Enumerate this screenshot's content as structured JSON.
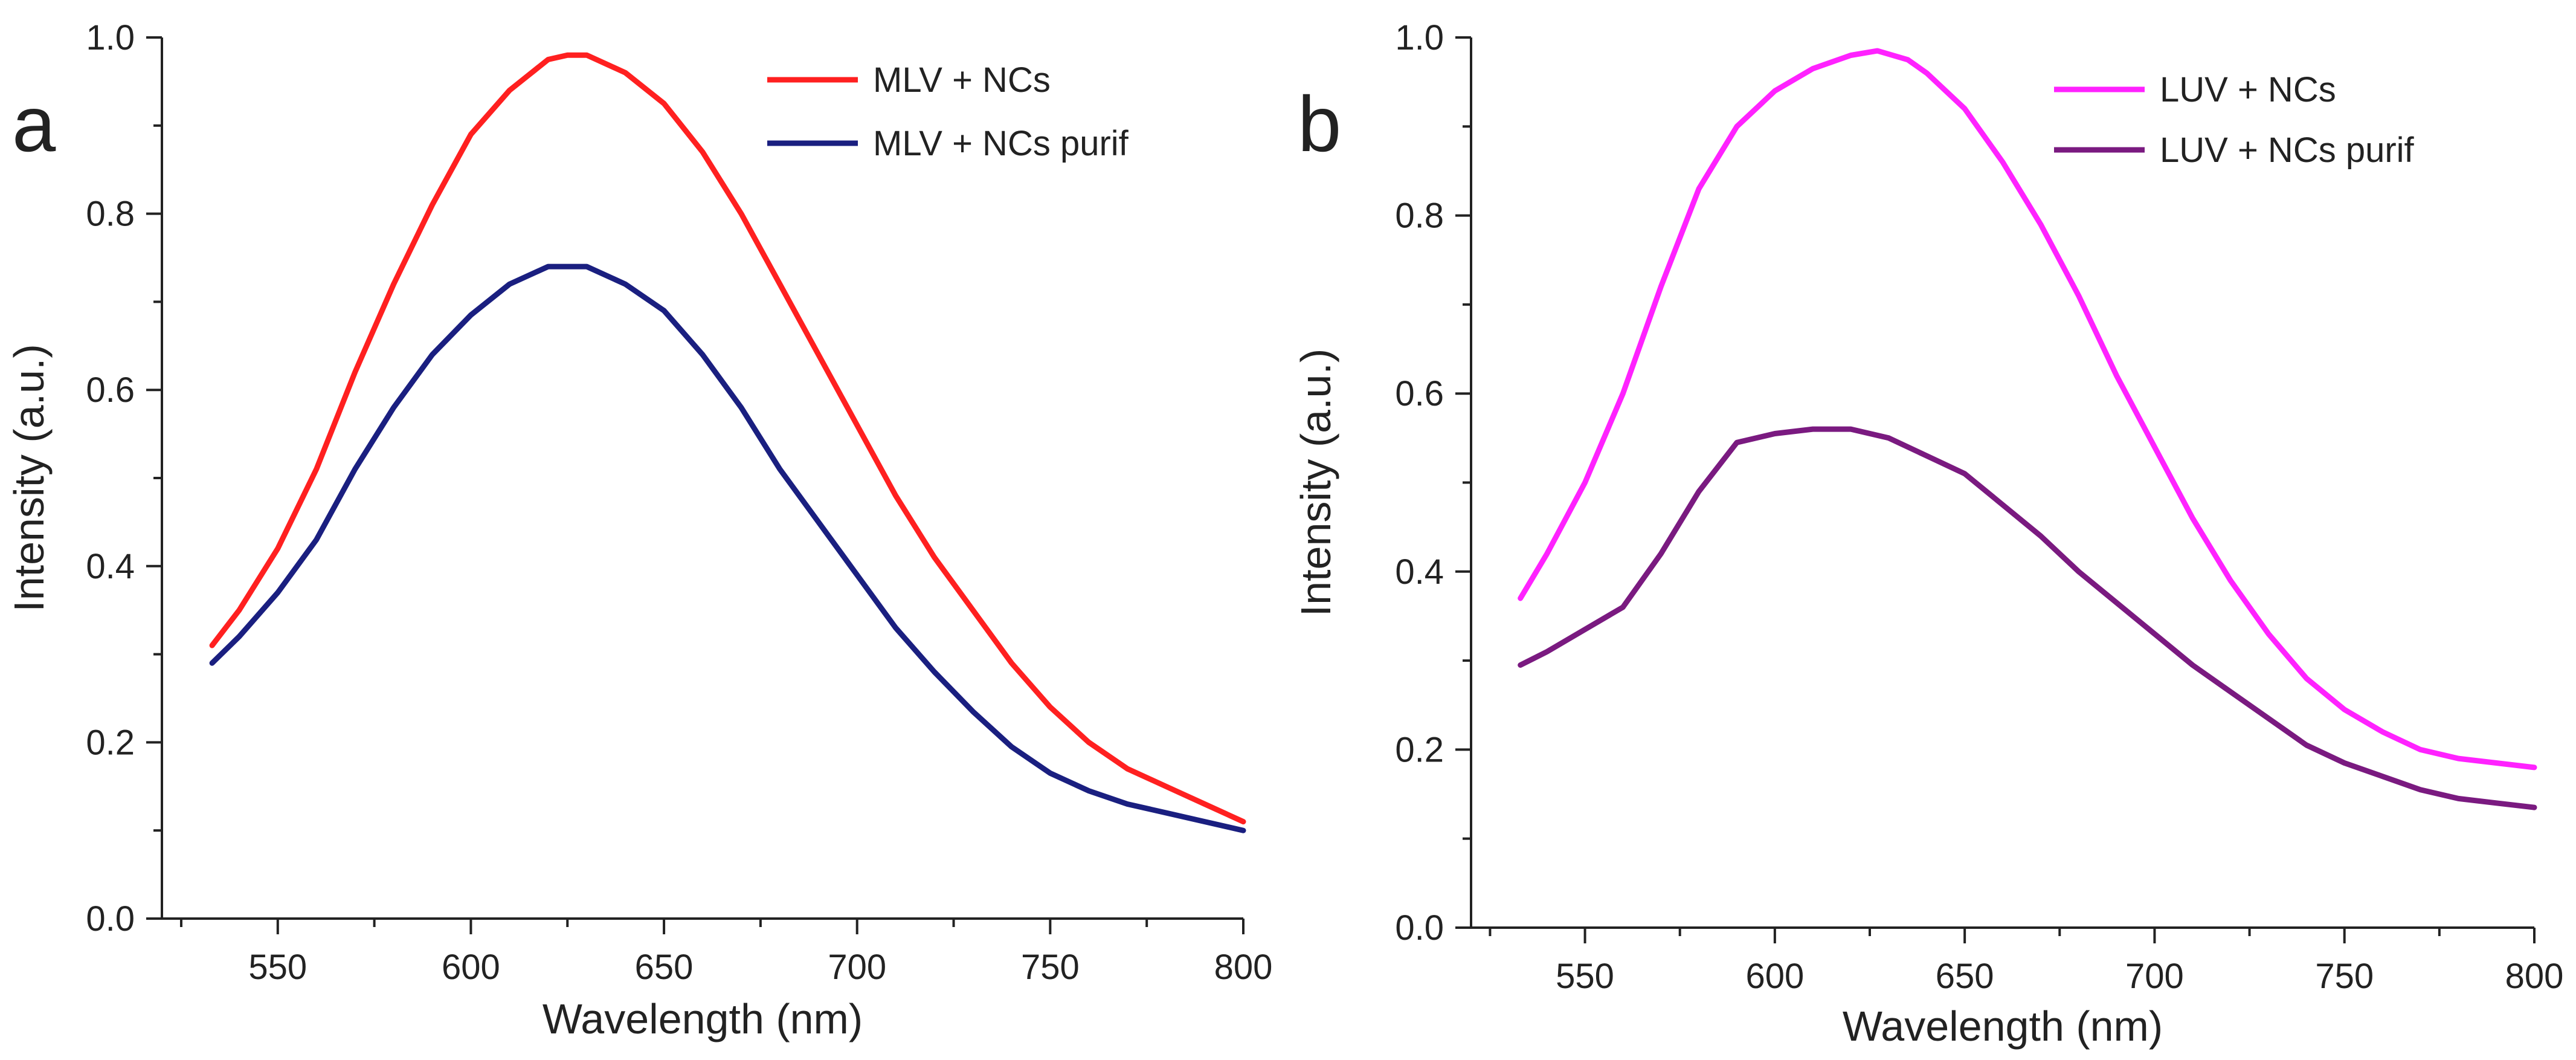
{
  "chart_data": [
    {
      "type": "line",
      "panel_label": "a",
      "title": "",
      "xlabel": "Wavelength (nm)",
      "ylabel": "Intensity (a.u.)",
      "xlim": [
        520,
        800
      ],
      "ylim": [
        0.0,
        1.0
      ],
      "xticks": [
        550,
        600,
        650,
        700,
        750,
        800
      ],
      "yticks": [
        "0.0",
        "0.2",
        "0.4",
        "0.6",
        "0.8",
        "1.0"
      ],
      "grid": false,
      "legend": "top-right",
      "series": [
        {
          "name": "MLV + NCs",
          "color": "#ff2020",
          "x": [
            533,
            540,
            550,
            560,
            570,
            580,
            590,
            600,
            610,
            620,
            625,
            630,
            640,
            650,
            660,
            670,
            680,
            690,
            700,
            710,
            720,
            730,
            740,
            750,
            760,
            770,
            780,
            790,
            800
          ],
          "y": [
            0.31,
            0.35,
            0.42,
            0.51,
            0.62,
            0.72,
            0.81,
            0.89,
            0.94,
            0.975,
            0.98,
            0.98,
            0.96,
            0.925,
            0.87,
            0.8,
            0.72,
            0.64,
            0.56,
            0.48,
            0.41,
            0.35,
            0.29,
            0.24,
            0.2,
            0.17,
            0.15,
            0.13,
            0.11
          ]
        },
        {
          "name": "MLV + NCs purif",
          "color": "#1a1f80",
          "x": [
            533,
            540,
            550,
            560,
            570,
            580,
            590,
            600,
            610,
            620,
            630,
            640,
            650,
            660,
            670,
            680,
            690,
            700,
            710,
            720,
            730,
            740,
            750,
            760,
            770,
            780,
            790,
            800
          ],
          "y": [
            0.29,
            0.32,
            0.37,
            0.43,
            0.51,
            0.58,
            0.64,
            0.685,
            0.72,
            0.74,
            0.74,
            0.72,
            0.69,
            0.64,
            0.58,
            0.51,
            0.45,
            0.39,
            0.33,
            0.28,
            0.235,
            0.195,
            0.165,
            0.145,
            0.13,
            0.12,
            0.11,
            0.1
          ]
        }
      ]
    },
    {
      "type": "line",
      "panel_label": "b",
      "title": "",
      "xlabel": "Wavelength (nm)",
      "ylabel": "Intensity (a.u.)",
      "xlim": [
        520,
        800
      ],
      "ylim": [
        0.0,
        1.0
      ],
      "xticks": [
        550,
        600,
        650,
        700,
        750,
        800
      ],
      "yticks": [
        "0.0",
        "0.2",
        "0.4",
        "0.6",
        "0.8",
        "1.0"
      ],
      "grid": false,
      "legend": "top-right",
      "series": [
        {
          "name": "LUV + NCs",
          "color": "#ff22ff",
          "x": [
            533,
            540,
            550,
            560,
            570,
            580,
            590,
            600,
            610,
            620,
            627,
            635,
            640,
            650,
            660,
            670,
            680,
            690,
            700,
            710,
            720,
            730,
            740,
            750,
            760,
            770,
            780,
            790,
            800
          ],
          "y": [
            0.37,
            0.42,
            0.5,
            0.6,
            0.72,
            0.83,
            0.9,
            0.94,
            0.965,
            0.98,
            0.985,
            0.975,
            0.96,
            0.92,
            0.86,
            0.79,
            0.71,
            0.62,
            0.54,
            0.46,
            0.39,
            0.33,
            0.28,
            0.245,
            0.22,
            0.2,
            0.19,
            0.185,
            0.18
          ]
        },
        {
          "name": "LUV + NCs purif",
          "color": "#7a1a80",
          "x": [
            533,
            540,
            550,
            560,
            570,
            580,
            590,
            600,
            610,
            620,
            630,
            640,
            650,
            660,
            670,
            680,
            690,
            700,
            710,
            720,
            730,
            740,
            750,
            760,
            770,
            780,
            790,
            800
          ],
          "y": [
            0.295,
            0.31,
            0.335,
            0.36,
            0.42,
            0.49,
            0.545,
            0.555,
            0.56,
            0.56,
            0.55,
            0.53,
            0.51,
            0.475,
            0.44,
            0.4,
            0.365,
            0.33,
            0.295,
            0.265,
            0.235,
            0.205,
            0.185,
            0.17,
            0.155,
            0.145,
            0.14,
            0.135
          ]
        }
      ]
    }
  ]
}
